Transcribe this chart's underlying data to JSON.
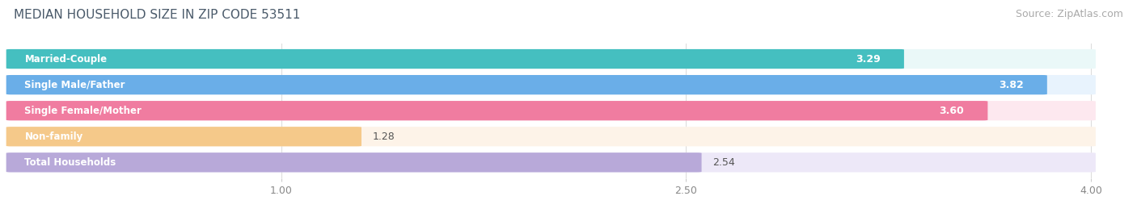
{
  "title": "MEDIAN HOUSEHOLD SIZE IN ZIP CODE 53511",
  "source": "Source: ZipAtlas.com",
  "categories": [
    "Married-Couple",
    "Single Male/Father",
    "Single Female/Mother",
    "Non-family",
    "Total Households"
  ],
  "values": [
    3.29,
    3.82,
    3.6,
    1.28,
    2.54
  ],
  "bar_colors": [
    "#45bfc0",
    "#6aaee8",
    "#f07ca0",
    "#f5c98a",
    "#b8a9d9"
  ],
  "bar_bg_colors": [
    "#eaf8f8",
    "#e8f3fd",
    "#fde8ef",
    "#fdf3e8",
    "#ede8f8"
  ],
  "value_outside_colors": [
    "#ffffff",
    "#ffffff",
    "#ffffff",
    "#555555",
    "#555555"
  ],
  "xlim_data": [
    0.0,
    4.2
  ],
  "xmin": 0.0,
  "xmax": 4.0,
  "xticks": [
    1.0,
    2.5,
    4.0
  ],
  "title_color": "#4a5a6a",
  "source_color": "#aaaaaa",
  "title_fontsize": 11,
  "source_fontsize": 9,
  "bar_height": 0.72,
  "bar_label_fontsize": 9,
  "category_fontsize": 8.5,
  "tick_fontsize": 9,
  "bg_color": "#ffffff"
}
